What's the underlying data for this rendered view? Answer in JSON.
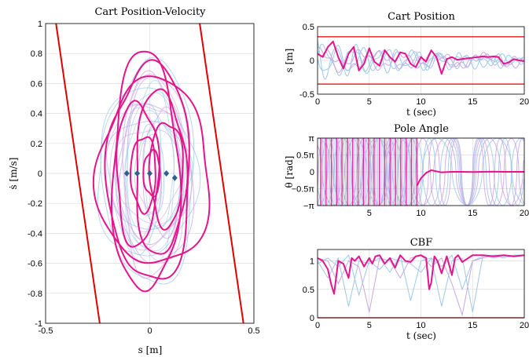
{
  "colors": {
    "highlight": "#e6148c",
    "light_blue": "#9ec8ea",
    "light_purple": "#c9a6e4",
    "boundary": "#e00000",
    "marker": "#2f5f8a",
    "axis": "#000000",
    "grid": "#dcdcdc"
  },
  "chart_data": [
    {
      "id": "phase",
      "type": "line",
      "title": "Cart Position-Velocity",
      "xlabel": "s [m]",
      "ylabel": "ṡ [m/s]",
      "xlim": [
        -0.5,
        0.5
      ],
      "ylim": [
        -1,
        1
      ],
      "xticks": [
        -0.5,
        0,
        0.5
      ],
      "xtick_labels": [
        "-0.5",
        "0",
        "0.5"
      ],
      "yticks": [
        -1,
        -0.8,
        -0.6,
        -0.4,
        -0.2,
        0,
        0.2,
        0.4,
        0.6,
        0.8,
        1
      ],
      "ytick_labels": [
        "-1",
        "-0.8",
        "-0.6",
        "-0.4",
        "-0.2",
        "0",
        "0.2",
        "0.4",
        "0.6",
        "0.8",
        "1"
      ],
      "grid": true,
      "boundaries": [
        {
          "x": [
            -0.45,
            -0.24
          ],
          "y": [
            1,
            -1
          ]
        },
        {
          "x": [
            0.24,
            0.45
          ],
          "y": [
            1,
            -1
          ]
        }
      ],
      "highlight_loops": [
        {
          "cx": 0.0,
          "rx": 0.2,
          "ry": 0.72
        },
        {
          "cx": 0.02,
          "rx": 0.27,
          "ry": 0.62
        },
        {
          "cx": -0.02,
          "rx": 0.16,
          "ry": 0.8
        },
        {
          "cx": 0.05,
          "rx": 0.12,
          "ry": 0.55
        },
        {
          "cx": -0.06,
          "rx": 0.1,
          "ry": 0.48
        },
        {
          "cx": 0.08,
          "rx": 0.08,
          "ry": 0.35
        },
        {
          "cx": -0.03,
          "rx": 0.06,
          "ry": 0.25
        },
        {
          "cx": 0.01,
          "rx": 0.04,
          "ry": 0.15
        }
      ],
      "faint_loops": [
        {
          "cx": 0.0,
          "rx": 0.22,
          "ry": 0.74
        },
        {
          "cx": 0.03,
          "rx": 0.18,
          "ry": 0.62
        },
        {
          "cx": -0.02,
          "rx": 0.24,
          "ry": 0.56
        },
        {
          "cx": 0.01,
          "rx": 0.14,
          "ry": 0.68
        },
        {
          "cx": -0.05,
          "rx": 0.11,
          "ry": 0.5
        },
        {
          "cx": 0.06,
          "rx": 0.09,
          "ry": 0.42
        },
        {
          "cx": 0.0,
          "rx": 0.07,
          "ry": 0.3
        },
        {
          "cx": 0.02,
          "rx": 0.17,
          "ry": 0.46
        },
        {
          "cx": -0.01,
          "rx": 0.2,
          "ry": 0.36
        }
      ],
      "markers": [
        {
          "x": -0.11,
          "y": 0.0
        },
        {
          "x": -0.06,
          "y": 0.0
        },
        {
          "x": 0.0,
          "y": 0.0
        },
        {
          "x": 0.08,
          "y": 0.0
        },
        {
          "x": 0.12,
          "y": -0.03
        }
      ]
    },
    {
      "id": "position",
      "type": "line",
      "title": "Cart Position",
      "xlabel": "t (sec)",
      "ylabel": "s [m]",
      "xlim": [
        0,
        20
      ],
      "ylim": [
        -0.5,
        0.5
      ],
      "xticks": [
        0,
        5,
        10,
        15,
        20
      ],
      "xtick_labels": [
        "0",
        "5",
        "10",
        "15",
        "20"
      ],
      "yticks": [
        -0.5,
        0,
        0.5
      ],
      "ytick_labels": [
        "-0.5",
        "0",
        "0.5"
      ],
      "grid": true,
      "limits": [
        0.35,
        -0.35
      ],
      "highlight_series": {
        "x": [
          0,
          0.5,
          1,
          1.5,
          2,
          2.5,
          3,
          3.5,
          4,
          4.5,
          5,
          5.5,
          6,
          6.5,
          7,
          7.5,
          8,
          8.5,
          9,
          9.5,
          10,
          10.5,
          11,
          11.5,
          12,
          12.5,
          13,
          13.5,
          14,
          14.5,
          15,
          15.5,
          16,
          16.5,
          17,
          17.5,
          18,
          18.5,
          19,
          19.5,
          20
        ],
        "y": [
          0.1,
          0.05,
          0.2,
          0.28,
          0.05,
          -0.12,
          0.1,
          0.2,
          -0.15,
          -0.05,
          0.18,
          -0.02,
          -0.08,
          0.15,
          0.05,
          -0.02,
          0.12,
          0.1,
          -0.05,
          -0.1,
          0.05,
          -0.02,
          0.15,
          0.05,
          -0.2,
          0.02,
          0.05,
          0.01,
          0.02,
          0.03,
          0.04,
          0.05,
          0.06,
          0.05,
          0.06,
          0.05,
          -0.05,
          -0.03,
          0.02,
          0.0,
          -0.01
        ]
      },
      "faint_series": [
        {
          "amp": 0.22,
          "freq": 1.1,
          "phase": 0.3,
          "decay": 0.08
        },
        {
          "amp": 0.15,
          "freq": 0.8,
          "phase": 1.2,
          "decay": 0.05
        },
        {
          "amp": 0.28,
          "freq": 1.6,
          "phase": 2.1,
          "decay": 0.1
        },
        {
          "amp": 0.12,
          "freq": 0.6,
          "phase": 0.9,
          "decay": 0.03
        },
        {
          "amp": 0.2,
          "freq": 1.3,
          "phase": 2.8,
          "decay": 0.06
        }
      ]
    },
    {
      "id": "angle",
      "type": "line",
      "title": "Pole Angle",
      "xlabel": "",
      "ylabel": "θ [rad]",
      "xlim": [
        0,
        20
      ],
      "ylim": [
        -3.1416,
        3.1416
      ],
      "xticks": [
        5,
        10,
        15,
        20
      ],
      "xtick_labels": [
        "5",
        "10",
        "15",
        "20"
      ],
      "yticks": [
        -3.1416,
        -1.5708,
        0,
        1.5708,
        3.1416
      ],
      "ytick_labels": [
        "−π",
        "−0.5π",
        "0",
        "0.5π",
        "π"
      ],
      "grid": true,
      "wrap_lines_until": 9.6,
      "wrap_line_count": 55,
      "highlight_series": {
        "x": [
          9.6,
          10,
          10.5,
          11,
          11.5,
          12,
          13,
          14,
          15,
          16,
          17,
          18,
          19,
          20
        ],
        "y": [
          -1.3,
          -0.6,
          -0.1,
          0.15,
          0.05,
          -0.05,
          0.0,
          0.0,
          -0.02,
          0.0,
          0.02,
          0.0,
          0.0,
          0.0
        ]
      },
      "faint_wave_count": 6
    },
    {
      "id": "cbf",
      "type": "line",
      "title": "CBF",
      "xlabel": "t (sec)",
      "ylabel": "",
      "xlim": [
        0,
        20
      ],
      "ylim": [
        0,
        1.2
      ],
      "xticks": [
        0,
        5,
        10,
        15,
        20
      ],
      "xtick_labels": [
        "0",
        "5",
        "10",
        "15",
        "20"
      ],
      "yticks": [
        0,
        0.5,
        1
      ],
      "ytick_labels": [
        "0",
        "0.5",
        "1"
      ],
      "grid": true,
      "zero_line": 0,
      "highlight_series": {
        "x": [
          0,
          0.5,
          1,
          1.3,
          1.6,
          2,
          2.5,
          3,
          3.3,
          3.6,
          4,
          4.5,
          5,
          5.3,
          5.6,
          6,
          6.5,
          7,
          7.5,
          8,
          8.5,
          9,
          9.5,
          10,
          10.5,
          10.8,
          11,
          11.3,
          11.6,
          12,
          12.5,
          13,
          13.3,
          13.6,
          14,
          15,
          16,
          17,
          18,
          19,
          20
        ],
        "y": [
          1.05,
          1.0,
          0.85,
          0.6,
          0.42,
          1.0,
          0.95,
          0.7,
          1.05,
          1.0,
          1.08,
          0.9,
          1.05,
          0.95,
          1.08,
          1.1,
          0.95,
          1.05,
          0.88,
          1.1,
          1.0,
          0.98,
          1.08,
          1.1,
          1.05,
          0.5,
          0.62,
          1.08,
          1.0,
          0.78,
          1.08,
          0.75,
          1.05,
          1.1,
          0.98,
          1.1,
          1.1,
          1.08,
          1.1,
          1.08,
          1.1
        ]
      },
      "faint_series": [
        {
          "x": [
            0,
            1,
            2,
            3,
            4,
            5,
            6,
            7,
            8,
            9,
            10,
            11,
            12,
            13,
            14,
            15,
            16,
            17,
            18,
            19,
            20
          ],
          "y": [
            1.0,
            0.7,
            1.05,
            0.2,
            1.0,
            0.95,
            1.05,
            0.8,
            1.1,
            0.3,
            1.0,
            1.05,
            0.9,
            1.1,
            0.5,
            1.0,
            1.08,
            1.1,
            1.05,
            1.1,
            1.1
          ]
        },
        {
          "x": [
            0,
            1,
            2,
            3,
            4,
            5,
            6,
            7,
            8,
            9,
            10,
            11,
            12,
            13,
            14,
            15,
            16,
            17,
            18,
            19,
            20
          ],
          "y": [
            1.05,
            1.0,
            0.6,
            1.0,
            0.9,
            0.1,
            1.05,
            1.0,
            0.7,
            1.05,
            1.1,
            0.9,
            1.05,
            0.6,
            0.05,
            1.0,
            1.05,
            1.1,
            1.1,
            1.08,
            1.1
          ]
        },
        {
          "x": [
            0,
            1,
            2,
            3,
            4,
            5,
            6,
            7,
            8,
            9,
            10,
            11,
            12,
            13,
            14,
            15,
            16,
            17,
            18,
            19,
            20
          ],
          "y": [
            0.95,
            1.05,
            0.9,
            1.1,
            0.4,
            1.0,
            0.85,
            1.05,
            1.0,
            0.95,
            0.8,
            1.05,
            0.2,
            1.0,
            1.05,
            0.1,
            1.1,
            1.05,
            1.08,
            1.1,
            1.1
          ]
        }
      ]
    }
  ]
}
